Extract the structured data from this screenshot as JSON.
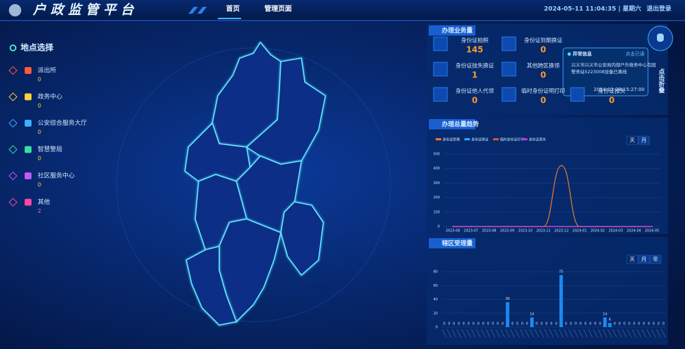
{
  "header": {
    "title": "户 政 监 管 平 台",
    "nav": [
      "首页",
      "管理页面"
    ],
    "datetime": "2024-05-11 11:04:35 | 星期六",
    "logout": "退出登录"
  },
  "locations": {
    "title": "地点选择",
    "items": [
      {
        "name": "派出所",
        "count": 0
      },
      {
        "name": "政务中心",
        "count": 0
      },
      {
        "name": "公安综合服务大厅",
        "count": 0
      },
      {
        "name": "智慧警局",
        "count": 0
      },
      {
        "name": "社区服务中心",
        "count": 0
      },
      {
        "name": "其他",
        "count": 2
      }
    ]
  },
  "business": {
    "title": "办理业务量",
    "items": [
      {
        "label": "身份证拍照",
        "value": 145
      },
      {
        "label": "身份证到期换证",
        "value": 0
      },
      {
        "label": "身份证挂失换证",
        "value": 1
      },
      {
        "label": "其他跨区换领",
        "value": 0
      },
      {
        "label": "身份证他人代领",
        "value": 0
      },
      {
        "label": "临时身份证明打印",
        "value": 0
      },
      {
        "label": "身份证挂失",
        "value": 0
      }
    ]
  },
  "alert": {
    "title": "异常信息",
    "action": "点击已读",
    "message": "兴义市兴义市公安局内部户外政务中心花园警务站5223008设备已离线",
    "time": "2024-02-28 15:27:00"
  },
  "fold": "点击折叠",
  "chart_data": [
    {
      "type": "line",
      "title": "办理总量趋势",
      "tabs": [
        "天",
        "月"
      ],
      "x": [
        "2023-06",
        "2023-07",
        "2023-08",
        "2023-09",
        "2023-10",
        "2023-11",
        "2023-12",
        "2024-01",
        "2024-02",
        "2024-03",
        "2024-04",
        "2024-05"
      ],
      "series": [
        {
          "name": "身份证受理",
          "color": "#f07d2a",
          "values": [
            0,
            0,
            0,
            0,
            0,
            0,
            420,
            0,
            0,
            0,
            0,
            0
          ]
        },
        {
          "name": "身份证换证",
          "color": "#19b6ff",
          "values": [
            0,
            0,
            0,
            0,
            0,
            0,
            0,
            0,
            0,
            0,
            0,
            0
          ]
        },
        {
          "name": "临时身份证打印",
          "color": "#e8542a",
          "values": [
            0,
            0,
            0,
            0,
            0,
            0,
            0,
            0,
            0,
            0,
            0,
            0
          ]
        },
        {
          "name": "身份证丢失",
          "color": "#c23ad6",
          "values": [
            0,
            0,
            0,
            0,
            0,
            0,
            0,
            0,
            0,
            0,
            0,
            0
          ]
        }
      ],
      "ylim": [
        0,
        500
      ],
      "yticks": [
        0,
        100,
        200,
        300,
        400,
        500
      ]
    },
    {
      "type": "bar",
      "title": "辖区受理量",
      "tabs": [
        "天",
        "月",
        "年"
      ],
      "color": "#1a8cf0",
      "categories": [
        null,
        null,
        null,
        null,
        null,
        null,
        null,
        null,
        null,
        null,
        null,
        null,
        null,
        null,
        null,
        null,
        null,
        null,
        null,
        null,
        null,
        null,
        null,
        null,
        null,
        null,
        null,
        null,
        null,
        null,
        null,
        null,
        null,
        null,
        null,
        null,
        null,
        null,
        null,
        null,
        null,
        null,
        null,
        null,
        null,
        null
      ],
      "values": [
        0,
        0,
        0,
        0,
        0,
        0,
        0,
        0,
        0,
        0,
        0,
        0,
        0,
        36,
        0,
        0,
        0,
        0,
        14,
        0,
        0,
        0,
        0,
        0,
        75,
        0,
        0,
        0,
        0,
        0,
        0,
        0,
        0,
        14,
        6,
        0,
        0,
        0,
        0,
        0,
        0,
        0,
        0,
        0,
        0,
        0
      ],
      "ylim": [
        0,
        80
      ],
      "yticks": [
        0,
        20,
        40,
        60,
        80
      ]
    }
  ]
}
